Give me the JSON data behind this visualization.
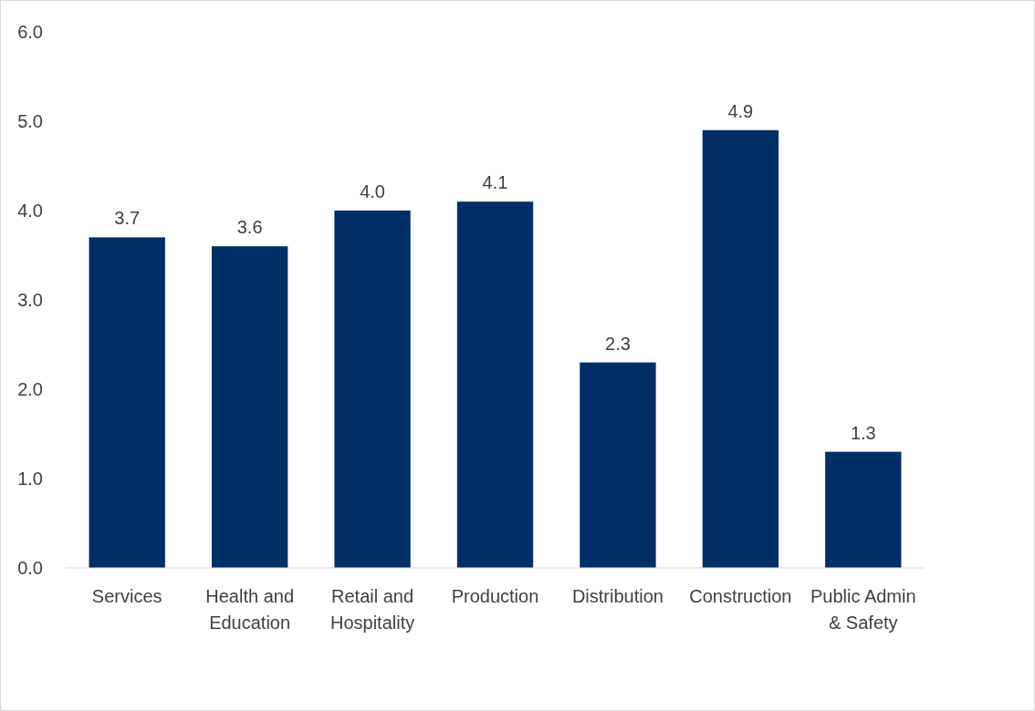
{
  "chart_data": {
    "type": "bar",
    "categories": [
      "Services",
      "Health and Education",
      "Retail and Hospitality",
      "Production",
      "Distribution",
      "Construction",
      "Public Admin & Safety"
    ],
    "values": [
      3.7,
      3.6,
      4.0,
      4.1,
      2.3,
      4.9,
      1.3
    ],
    "color": "#002f67",
    "ylim": [
      0,
      6
    ],
    "yticks": [
      {
        "value": 0,
        "label": "0.0"
      },
      {
        "value": 1,
        "label": "1.0"
      },
      {
        "value": 2,
        "label": "2.0"
      },
      {
        "value": 3,
        "label": "3.0"
      },
      {
        "value": 4,
        "label": "4.0"
      },
      {
        "value": 5,
        "label": "5.0"
      },
      {
        "value": 6,
        "label": "6.0"
      }
    ],
    "grid": false,
    "value_labels": [
      "3.7",
      "3.6",
      "4.0",
      "4.1",
      "2.3",
      "4.9",
      "1.3"
    ]
  }
}
